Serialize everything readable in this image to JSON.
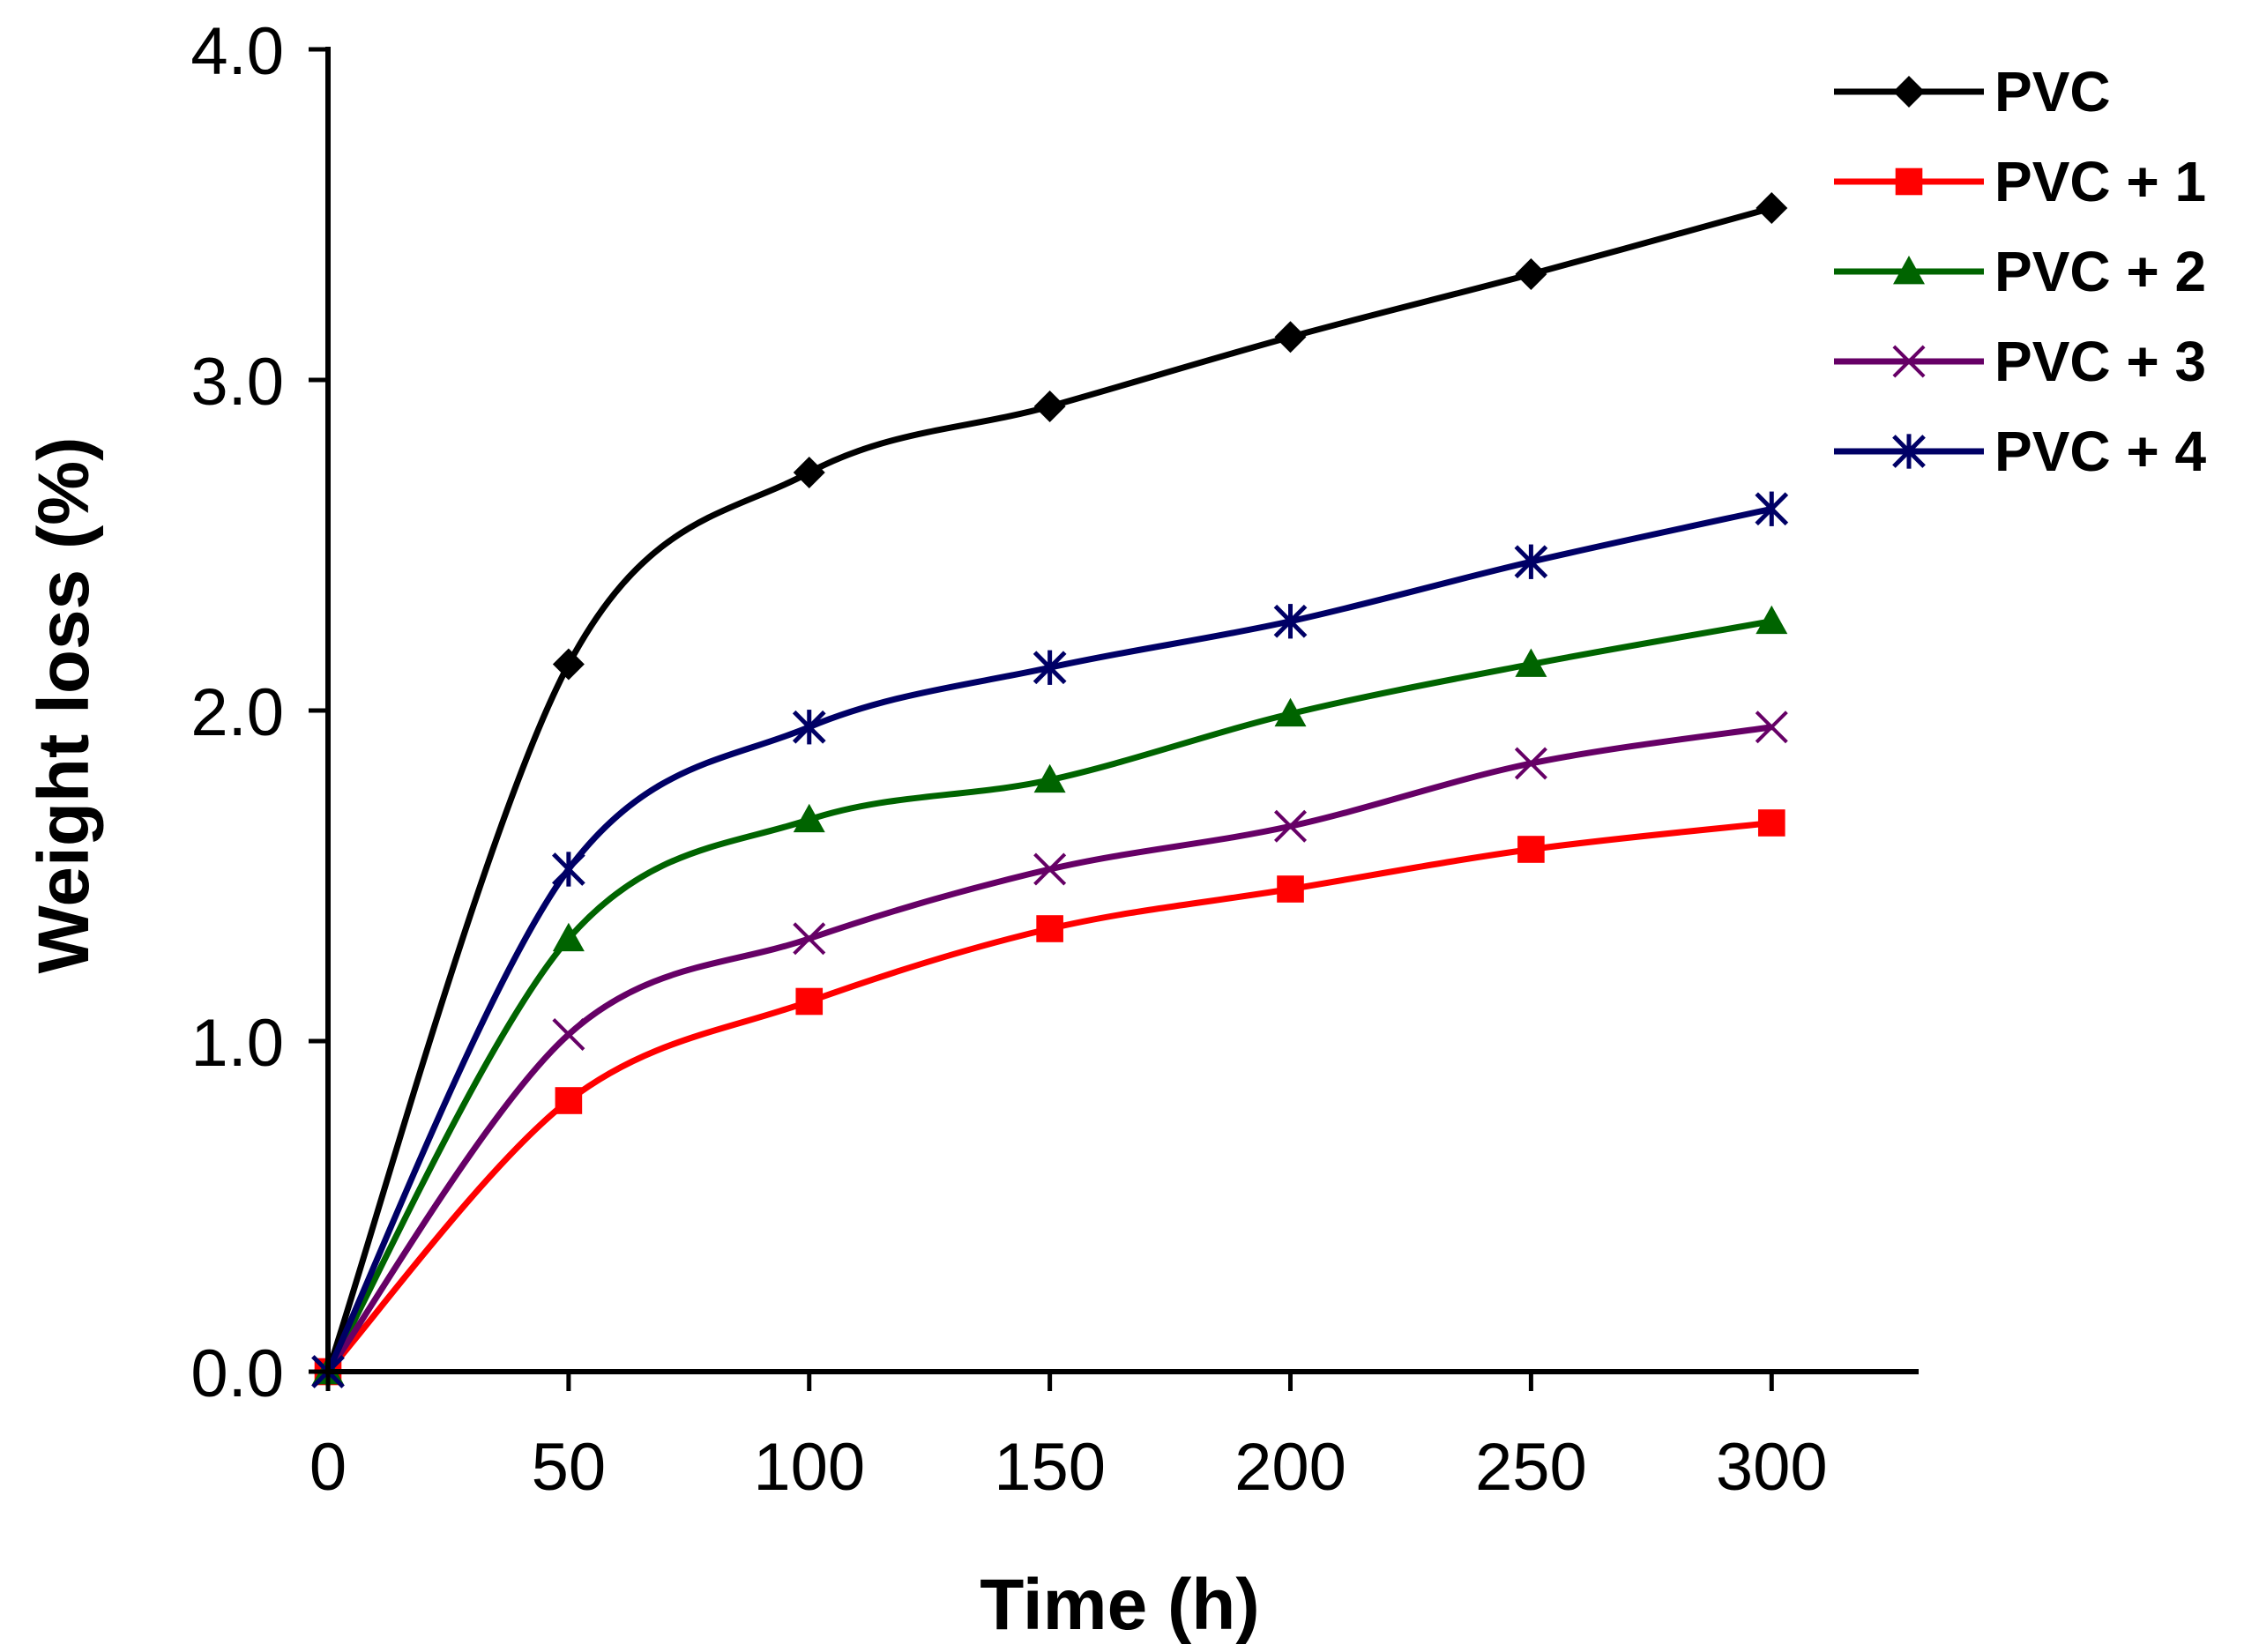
{
  "chart_data": {
    "type": "line",
    "title": "",
    "xlabel": "Time (h)",
    "ylabel": "Weight loss (%)",
    "x": [
      0,
      50,
      100,
      150,
      200,
      250,
      300
    ],
    "xlim": [
      0,
      330
    ],
    "ylim": [
      0.0,
      4.0
    ],
    "x_ticks": [
      0,
      50,
      100,
      150,
      200,
      250,
      300
    ],
    "x_tick_labels": [
      "0",
      "50",
      "100",
      "150",
      "200",
      "250",
      "300"
    ],
    "y_ticks": [
      0.0,
      1.0,
      2.0,
      3.0,
      4.0
    ],
    "y_tick_labels": [
      "0.0",
      "1.0",
      "2.0",
      "3.0",
      "4.0"
    ],
    "grid": false,
    "legend_position": "top-right",
    "series": [
      {
        "name": "PVC",
        "color": "#000000",
        "marker": "diamond",
        "values": [
          0.0,
          2.14,
          2.72,
          2.92,
          3.13,
          3.32,
          3.52
        ]
      },
      {
        "name": "PVC + 1",
        "color": "#ff0000",
        "marker": "square",
        "values": [
          0.0,
          0.82,
          1.12,
          1.34,
          1.46,
          1.58,
          1.66
        ]
      },
      {
        "name": "PVC + 2",
        "color": "#006400",
        "marker": "triangle",
        "values": [
          0.0,
          1.31,
          1.67,
          1.79,
          1.99,
          2.14,
          2.27
        ]
      },
      {
        "name": "PVC + 3",
        "color": "#660066",
        "marker": "x",
        "values": [
          0.0,
          1.02,
          1.31,
          1.52,
          1.65,
          1.84,
          1.95
        ]
      },
      {
        "name": "PVC + 4",
        "color": "#000066",
        "marker": "star",
        "values": [
          0.0,
          1.52,
          1.95,
          2.13,
          2.27,
          2.45,
          2.61
        ]
      }
    ]
  }
}
